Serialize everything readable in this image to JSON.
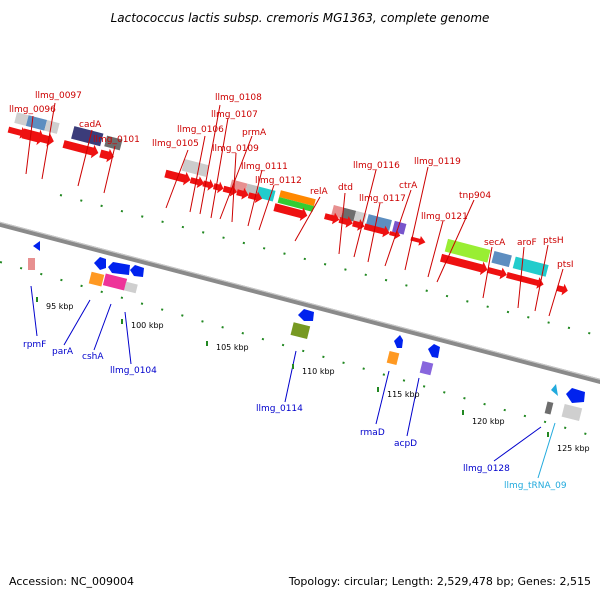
{
  "title": "Lactococcus lactis subsp. cremoris MG1363, complete genome",
  "footer": {
    "accession": "Accession: NC_009004",
    "summary": "Topology: circular; Length: 2,529,478 bp; Genes: 2,515"
  },
  "colors": {
    "forward_label": "#cc0000",
    "reverse_label": "#0000cc",
    "trna_label": "#22aadd",
    "backbone": "#888888",
    "tick": "#228822"
  },
  "ticks": [
    "95 kbp",
    "100 kbp",
    "105 kbp",
    "110 kbp",
    "115 kbp",
    "120 kbp",
    "125 kbp"
  ],
  "forward_labels": [
    "llmg_0097",
    "llmg_0096",
    "cadA",
    "llmg_0101",
    "llmg_0108",
    "llmg_0107",
    "llmg_0106",
    "prmA",
    "llmg_0105",
    "llmg_0109",
    "llmg_0111",
    "llmg_0112",
    "relA",
    "dtd",
    "llmg_0116",
    "llmg_0119",
    "ctrA",
    "llmg_0117",
    "tnp904",
    "llmg_0121",
    "secA",
    "aroF",
    "ptsH",
    "ptsI"
  ],
  "reverse_labels": [
    "rpmF",
    "parA",
    "cshA",
    "llmg_0104",
    "llmg_0114",
    "rmaD",
    "acpD",
    "llmg_0128"
  ],
  "trna_labels": [
    "llmg_tRNA_09"
  ]
}
